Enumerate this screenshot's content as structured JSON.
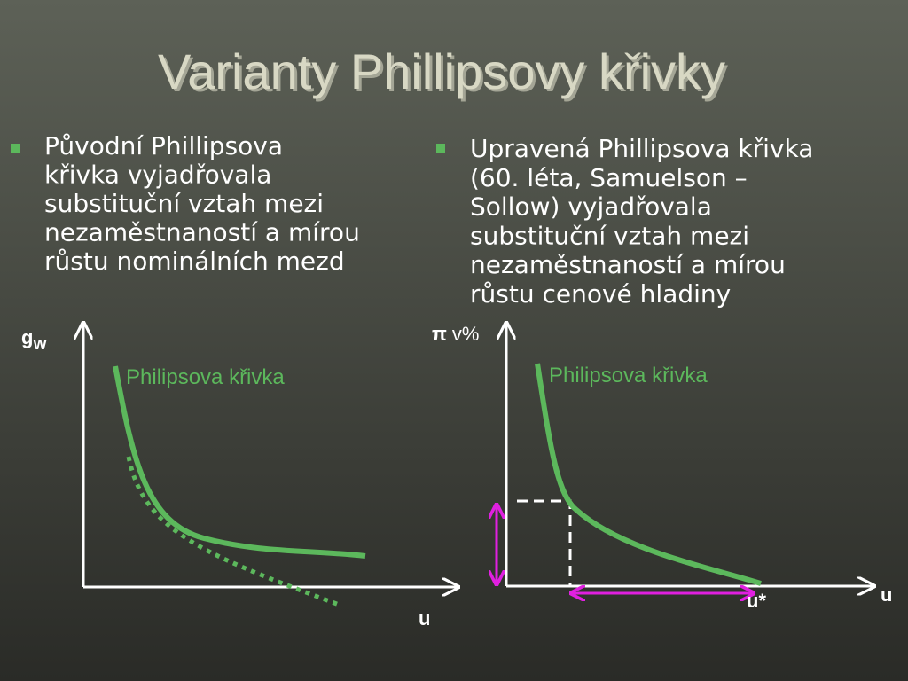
{
  "title": "Varianty Phillipsovy křivky",
  "bullets": [
    {
      "lines": [
        "Původní Phillipsova",
        "křivka vyjadřovala",
        "substituční vztah mezi",
        "nezaměstnaností a mírou",
        "růstu nominálních mezd"
      ]
    },
    {
      "lines": [
        "Upravená Phillipsova křivka",
        "(60. léta, Samuelson –",
        "Sollow) vyjadřovala",
        "substituční vztah mezi",
        "nezaměstnaností a mírou",
        "růstu cenové hladiny"
      ]
    }
  ],
  "diagrams": [
    {
      "y_label": "g",
      "y_label_sub": "W",
      "x_label": "u",
      "curve_label": "Philipsova křivka"
    },
    {
      "y_label": "π",
      "y_label_unit": "v%",
      "x_label": "u",
      "curve_label": "Philipsova křivka",
      "marker_label": "u*"
    }
  ]
}
